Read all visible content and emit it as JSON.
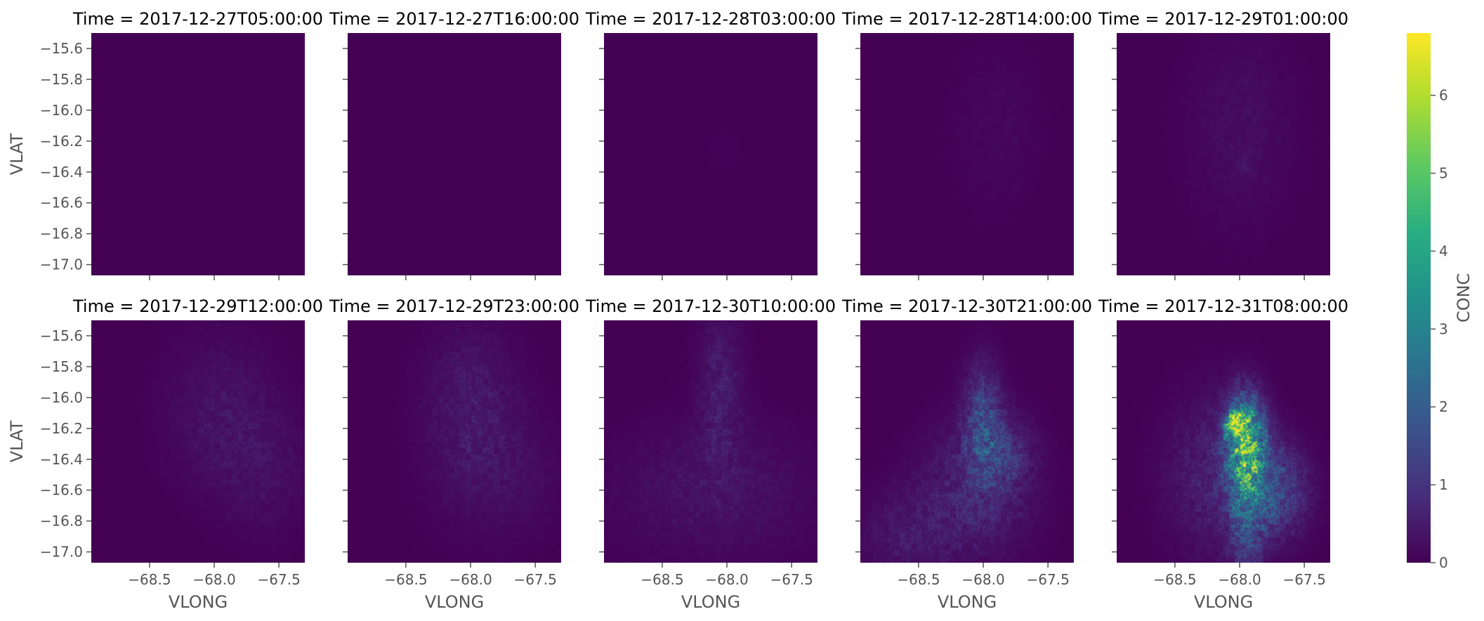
{
  "chart_data": {
    "type": "heatmap",
    "facet": "Time",
    "colorbar_label": "CONC",
    "colormap": "viridis",
    "clim": [
      0,
      6.8
    ],
    "colorbar_ticks": [
      "0",
      "1",
      "2",
      "3",
      "4",
      "5",
      "6"
    ],
    "xlabel": "VLONG",
    "ylabel": "VLAT",
    "xlim": [
      -68.95,
      -67.3
    ],
    "ylim": [
      -17.07,
      -15.5
    ],
    "x_ticks": [
      "−68.5",
      "−68.0",
      "−67.5"
    ],
    "y_ticks": [
      "−15.6",
      "−15.8",
      "−16.0",
      "−16.2",
      "−16.4",
      "−16.6",
      "−16.8",
      "−17.0"
    ],
    "panels": [
      {
        "title": "Time = 2017-12-27T05:00:00",
        "plumes": []
      },
      {
        "title": "Time = 2017-12-27T16:00:00",
        "plumes": []
      },
      {
        "title": "Time = 2017-12-28T03:00:00",
        "plumes": [
          {
            "lon": -68.0,
            "lat": -16.25,
            "sx": 0.12,
            "sy": 0.12,
            "peak": 0.08
          }
        ]
      },
      {
        "title": "Time = 2017-12-28T14:00:00",
        "plumes": [
          {
            "lon": -67.9,
            "lat": -16.1,
            "sx": 0.25,
            "sy": 0.4,
            "peak": 0.18
          }
        ]
      },
      {
        "title": "Time = 2017-12-29T01:00:00",
        "plumes": [
          {
            "lon": -68.0,
            "lat": -16.1,
            "sx": 0.3,
            "sy": 0.45,
            "peak": 0.3
          },
          {
            "lon": -67.95,
            "lat": -16.35,
            "sx": 0.05,
            "sy": 0.06,
            "peak": 0.25
          }
        ]
      },
      {
        "title": "Time = 2017-12-29T12:00:00",
        "plumes": [
          {
            "lon": -67.95,
            "lat": -16.1,
            "sx": 0.3,
            "sy": 0.35,
            "peak": 0.45
          },
          {
            "lon": -67.6,
            "lat": -16.5,
            "sx": 0.25,
            "sy": 0.3,
            "peak": 0.3
          }
        ]
      },
      {
        "title": "Time = 2017-12-29T23:00:00",
        "plumes": [
          {
            "lon": -68.0,
            "lat": -16.0,
            "sx": 0.25,
            "sy": 0.35,
            "peak": 0.55
          },
          {
            "lon": -67.8,
            "lat": -16.5,
            "sx": 0.35,
            "sy": 0.3,
            "peak": 0.35
          }
        ]
      },
      {
        "title": "Time = 2017-12-30T10:00:00",
        "plumes": [
          {
            "lon": -68.05,
            "lat": -15.9,
            "sx": 0.12,
            "sy": 0.35,
            "peak": 0.65
          },
          {
            "lon": -68.1,
            "lat": -16.6,
            "sx": 0.55,
            "sy": 0.3,
            "peak": 0.45
          }
        ]
      },
      {
        "title": "Time = 2017-12-30T21:00:00",
        "plumes": [
          {
            "lon": -68.0,
            "lat": -16.15,
            "sx": 0.1,
            "sy": 0.25,
            "peak": 1.8
          },
          {
            "lon": -68.05,
            "lat": -16.6,
            "sx": 0.3,
            "sy": 0.3,
            "peak": 0.9
          },
          {
            "lon": -67.85,
            "lat": -16.35,
            "sx": 0.15,
            "sy": 0.15,
            "peak": 1.0
          },
          {
            "lon": -68.6,
            "lat": -16.9,
            "sx": 0.25,
            "sy": 0.2,
            "peak": 0.55
          }
        ]
      },
      {
        "title": "Time = 2017-12-31T08:00:00",
        "plumes": [
          {
            "lon": -67.95,
            "lat": -16.3,
            "sx": 0.1,
            "sy": 0.2,
            "peak": 5.8
          },
          {
            "lon": -68.03,
            "lat": -16.17,
            "sx": 0.05,
            "sy": 0.05,
            "peak": 6.8
          },
          {
            "lon": -67.75,
            "lat": -16.6,
            "sx": 0.18,
            "sy": 0.2,
            "peak": 2.0
          },
          {
            "lon": -67.95,
            "lat": -16.85,
            "sx": 0.1,
            "sy": 0.2,
            "peak": 1.5
          },
          {
            "lon": -68.2,
            "lat": -16.5,
            "sx": 0.25,
            "sy": 0.35,
            "peak": 0.8
          }
        ]
      }
    ]
  }
}
